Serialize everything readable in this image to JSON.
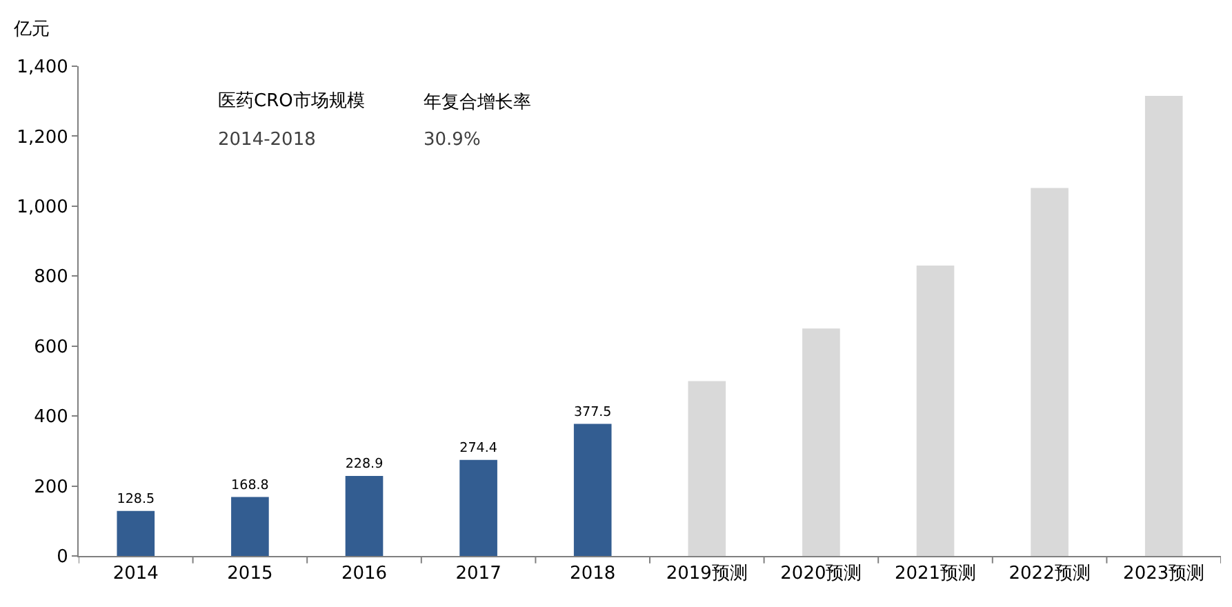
{
  "chart_data": {
    "type": "bar",
    "ylabel": "亿元",
    "categories": [
      "2014",
      "2015",
      "2016",
      "2017",
      "2018",
      "2019预测",
      "2020预测",
      "2021预测",
      "2022预测",
      "2023预测"
    ],
    "values": [
      128.5,
      168.8,
      228.9,
      274.4,
      377.5,
      500,
      650,
      830,
      1052,
      1315
    ],
    "colors": [
      "#335d91",
      "#335d91",
      "#335d91",
      "#335d91",
      "#335d91",
      "#d9d9d9",
      "#d9d9d9",
      "#d9d9d9",
      "#d9d9d9",
      "#d9d9d9"
    ],
    "value_labels": [
      "128.5",
      "168.8",
      "228.9",
      "274.4",
      "377.5",
      null,
      null,
      null,
      null,
      null
    ],
    "ylim": [
      0,
      1400
    ],
    "yticks": [
      0,
      200,
      400,
      600,
      800,
      {
        "value": 1000,
        "label": "1,000"
      },
      {
        "value": 1200,
        "label": "1,200"
      },
      {
        "value": 1400,
        "label": "1,400"
      }
    ],
    "annotations": [
      "医药CRO市场规模",
      "年复合增长率",
      "2014-2018",
      "30.9%"
    ]
  }
}
